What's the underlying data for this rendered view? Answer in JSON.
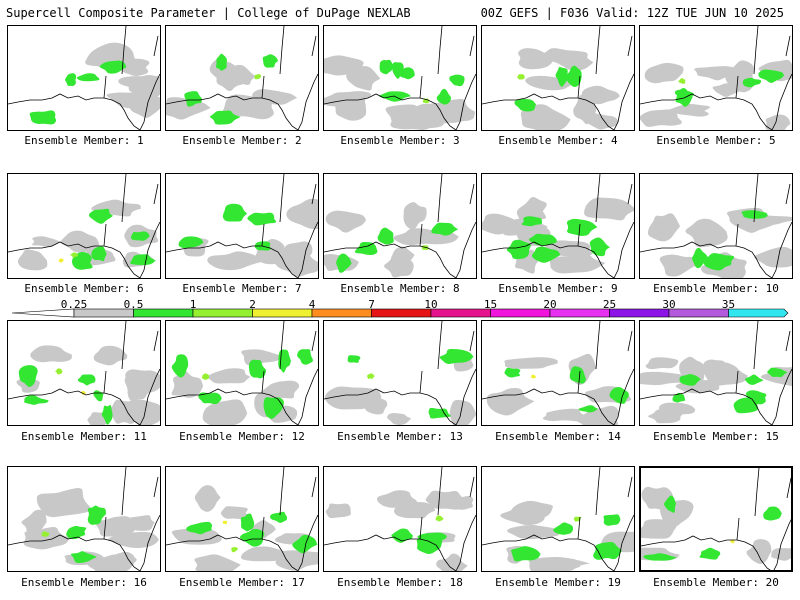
{
  "header": {
    "title_left": "Supercell Composite Parameter | College of DuPage NEXLAB",
    "title_right": "00Z GEFS | F036 Valid: 12Z TUE JUN 10 2025"
  },
  "panels": [
    {
      "label": "Ensemble Member: 1"
    },
    {
      "label": "Ensemble Member: 2"
    },
    {
      "label": "Ensemble Member: 3"
    },
    {
      "label": "Ensemble Member: 4"
    },
    {
      "label": "Ensemble Member: 5"
    },
    {
      "label": "Ensemble Member: 6"
    },
    {
      "label": "Ensemble Member: 7"
    },
    {
      "label": "Ensemble Member: 8"
    },
    {
      "label": "Ensemble Member: 9"
    },
    {
      "label": "Ensemble Member: 10"
    },
    {
      "label": "Ensemble Member: 11"
    },
    {
      "label": "Ensemble Member: 12"
    },
    {
      "label": "Ensemble Member: 13"
    },
    {
      "label": "Ensemble Member: 14"
    },
    {
      "label": "Ensemble Member: 15"
    },
    {
      "label": "Ensemble Member: 16"
    },
    {
      "label": "Ensemble Member: 17"
    },
    {
      "label": "Ensemble Member: 18"
    },
    {
      "label": "Ensemble Member: 19"
    },
    {
      "label": "Ensemble Member: 20",
      "selected": true
    }
  ],
  "colorbar": {
    "ticks": [
      "0.25",
      "0.5",
      "1",
      "2",
      "4",
      "7",
      "10",
      "15",
      "20",
      "25",
      "30",
      "35"
    ],
    "colors": [
      "#c8c8c8",
      "#32e632",
      "#96f032",
      "#f0f032",
      "#ff8c1e",
      "#e61414",
      "#e6148c",
      "#f014dc",
      "#e632f0",
      "#8c14e6",
      "#b45adc",
      "#32e6f0"
    ]
  },
  "palette": {
    "gray": "#c8c8c8",
    "green": "#32e632",
    "lightgreen": "#96f032",
    "yellow": "#f0f032"
  }
}
